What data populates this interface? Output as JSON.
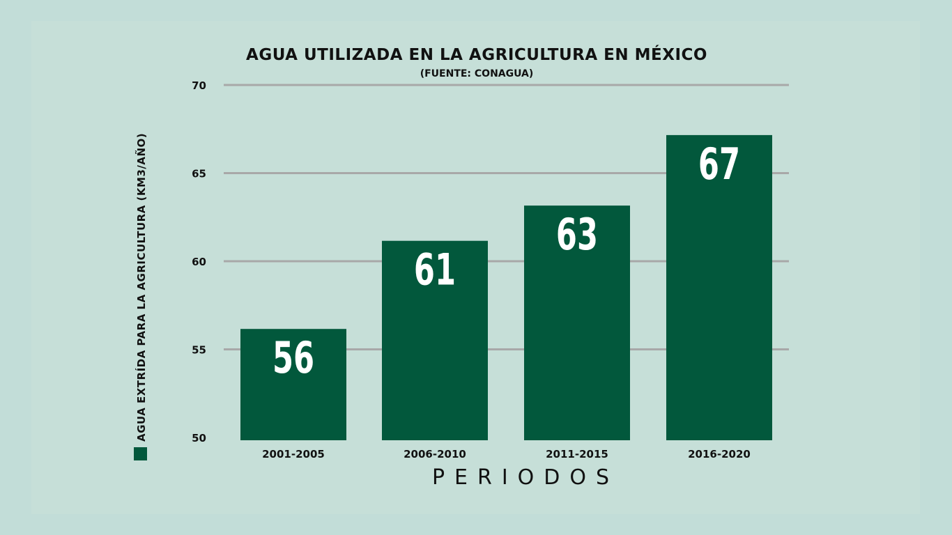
{
  "chart_data": {
    "type": "bar",
    "title": "AGUA UTILIZADA EN LA AGRICULTURA EN MÉXICO",
    "subtitle": "(FUENTE: CONAGUA)",
    "xlabel": "PERIODOS",
    "ylabel": "AGUA EXTRÍDA PARA LA AGRICULTURA (KM3/AÑO)",
    "categories": [
      "2001-2005",
      "2006-2010",
      "2011-2015",
      "2016-2020"
    ],
    "values": [
      56,
      61,
      63,
      67
    ],
    "value_labels": [
      "56",
      "61",
      "63",
      "67"
    ],
    "ylim": [
      50,
      70
    ],
    "yticks": [
      50,
      55,
      60,
      65,
      70
    ],
    "ytick_labels": [
      "50",
      "55",
      "60",
      "65",
      "70"
    ],
    "grid": true,
    "legend": "left",
    "colors": {
      "bar": "#02583c",
      "grid": "#a8a8a8",
      "background": "#c6dfd8",
      "value_text": "#ffffff"
    }
  }
}
